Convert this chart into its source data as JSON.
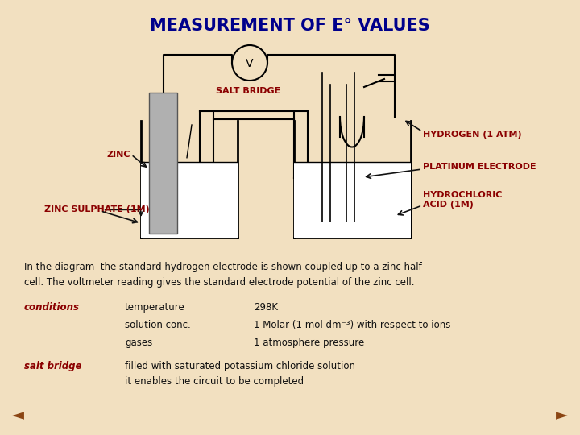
{
  "title": "MEASUREMENT OF E° VALUES",
  "title_color": "#00008B",
  "background_color": "#F2E0C0",
  "label_color_red": "#8B0000",
  "label_color_black": "#111111",
  "body_text": "In the diagram  the standard hydrogen electrode is shown coupled up to a zinc half\ncell. The voltmeter reading gives the standard electrode potential of the zinc cell.",
  "conditions_label": "conditions",
  "conditions_rows": [
    [
      "temperature",
      "298K"
    ],
    [
      "solution conc.",
      "1 Molar (1 mol dm⁻³) with respect to ions"
    ],
    [
      "gases",
      "1 atmosphere pressure"
    ]
  ],
  "salt_bridge_label": "salt bridge",
  "salt_bridge_text": "filled with saturated potassium chloride solution\nit enables the circuit to be completed"
}
